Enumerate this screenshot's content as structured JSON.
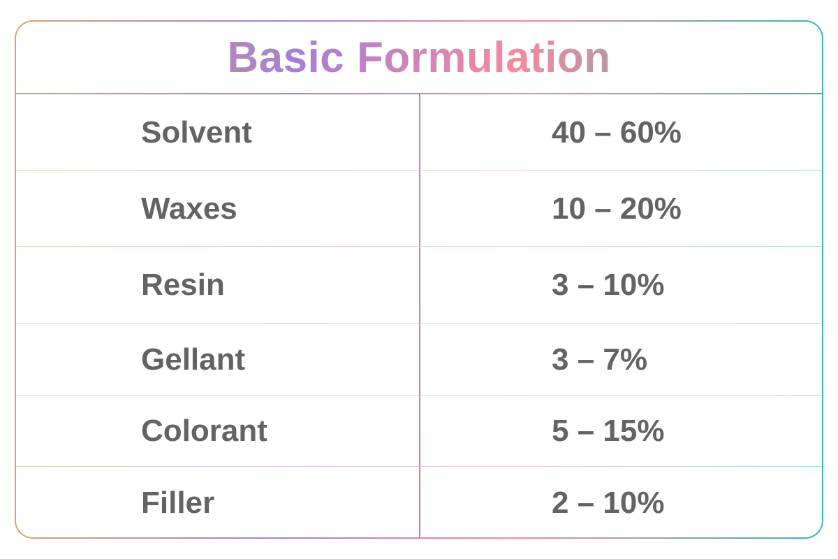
{
  "title": "Basic Formulation",
  "rows": [
    {
      "ingredient": "Solvent",
      "range": "40 – 60%"
    },
    {
      "ingredient": "Waxes",
      "range": "10 – 20%"
    },
    {
      "ingredient": "Resin",
      "range": "3 – 10%"
    },
    {
      "ingredient": "Gellant",
      "range": "3 – 7%"
    },
    {
      "ingredient": "Colorant",
      "range": "5 – 15%"
    },
    {
      "ingredient": "Filler",
      "range": "2 – 10%"
    }
  ],
  "colors": {
    "gradient": [
      "#d6a56c",
      "#a67fd6",
      "#f48a9e",
      "#36b6b1"
    ],
    "text": "#636363"
  }
}
